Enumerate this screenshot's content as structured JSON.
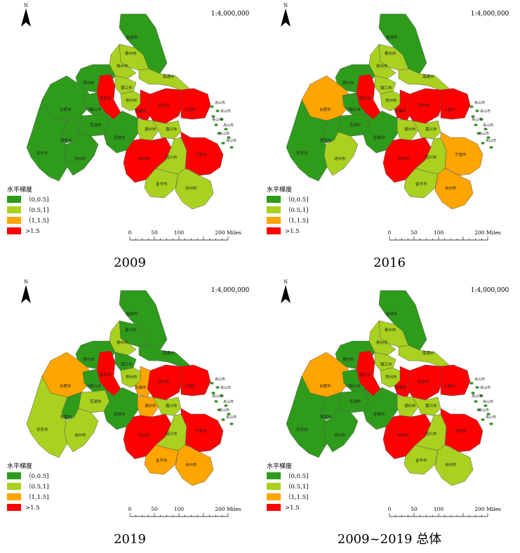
{
  "colors": {
    "c0": "#2e9c1a",
    "c1": "#aad11f",
    "c2": "#ffa500",
    "c3": "#ff0000",
    "outline": "#555555"
  },
  "legend": {
    "title": "水平梯度",
    "items": [
      "（0,0.5]",
      "（0.5,1]",
      "（1,1.5]",
      ">1.5"
    ]
  },
  "scalebar": {
    "labels": [
      "0",
      "50",
      "100",
      "200 Miles"
    ]
  },
  "north": "N",
  "scale_ratio": "1:4,000,000",
  "zhoushan_labels": [
    "舟山市",
    "舟山市",
    "舟山市",
    "舟山市",
    "舟山市",
    "舟山市"
  ],
  "cities": {
    "yancheng": "盐城市",
    "taizhou_js": "泰州市",
    "yangzhou": "扬州市",
    "nantong": "南通市",
    "chuzhou": "滁州市",
    "hefei": "合肥市",
    "nanjing": "南京市",
    "zhenjiang": "镇江市",
    "changzhou": "常州市",
    "wuxi": "无锡市",
    "suzhou": "苏州市",
    "shanghai": "上海市",
    "maanshan": "马鞍山市",
    "wuhu": "芜湖市",
    "xuancheng": "宣城市",
    "huzhou": "湖州市",
    "jiaxing": "嘉兴市",
    "tongling": "铜陵市",
    "anqing": "安庆市",
    "chizhou": "池州市",
    "hangzhou": "杭州市",
    "shaoxing": "绍兴市",
    "ningbo": "宁波市",
    "jinhua": "金华市",
    "taizhou_zj": "台州市"
  },
  "panels": [
    {
      "caption": "2009",
      "levels": {
        "yancheng": 0,
        "taizhou_js": 1,
        "yangzhou": 1,
        "nantong": 1,
        "chuzhou": 0,
        "hefei": 0,
        "nanjing": 3,
        "zhenjiang": 1,
        "changzhou": 1,
        "wuxi": 3,
        "suzhou": 3,
        "shanghai": 3,
        "maanshan": 0,
        "wuhu": 0,
        "xuancheng": 0,
        "huzhou": 1,
        "jiaxing": 1,
        "tongling": 0,
        "anqing": 0,
        "chizhou": 0,
        "hangzhou": 3,
        "shaoxing": 1,
        "ningbo": 3,
        "jinhua": 1,
        "taizhou_zj": 1,
        "zhoushan": 0
      }
    },
    {
      "caption": "2016",
      "levels": {
        "yancheng": 0,
        "taizhou_js": 1,
        "yangzhou": 1,
        "nantong": 1,
        "chuzhou": 0,
        "hefei": 2,
        "nanjing": 3,
        "zhenjiang": 1,
        "changzhou": 1,
        "wuxi": 3,
        "suzhou": 3,
        "shanghai": 3,
        "maanshan": 0,
        "wuhu": 0,
        "xuancheng": 0,
        "huzhou": 1,
        "jiaxing": 1,
        "tongling": 0,
        "anqing": 0,
        "chizhou": 1,
        "hangzhou": 3,
        "shaoxing": 1,
        "ningbo": 2,
        "jinhua": 1,
        "taizhou_zj": 2,
        "zhoushan": 0
      }
    },
    {
      "caption": "2019",
      "levels": {
        "yancheng": 0,
        "taizhou_js": 0,
        "yangzhou": 1,
        "nantong": 0,
        "chuzhou": 0,
        "hefei": 2,
        "nanjing": 3,
        "zhenjiang": 0,
        "changzhou": 1,
        "wuxi": 2,
        "suzhou": 3,
        "shanghai": 3,
        "maanshan": 0,
        "wuhu": 1,
        "xuancheng": 0,
        "huzhou": 2,
        "jiaxing": 1,
        "tongling": 0,
        "anqing": 1,
        "chizhou": 1,
        "hangzhou": 3,
        "shaoxing": 1,
        "ningbo": 3,
        "jinhua": 2,
        "taizhou_zj": 2,
        "zhoushan": 0
      }
    },
    {
      "caption": "2009~2019 总体",
      "levels": {
        "yancheng": 0,
        "taizhou_js": 1,
        "yangzhou": 1,
        "nantong": 1,
        "chuzhou": 0,
        "hefei": 2,
        "nanjing": 3,
        "zhenjiang": 1,
        "changzhou": 1,
        "wuxi": 3,
        "suzhou": 3,
        "shanghai": 3,
        "maanshan": 0,
        "wuhu": 0,
        "xuancheng": 0,
        "huzhou": 1,
        "jiaxing": 1,
        "tongling": 0,
        "anqing": 0,
        "chizhou": 0,
        "hangzhou": 3,
        "shaoxing": 1,
        "ningbo": 3,
        "jinhua": 1,
        "taizhou_zj": 1,
        "zhoushan": 0
      }
    }
  ]
}
